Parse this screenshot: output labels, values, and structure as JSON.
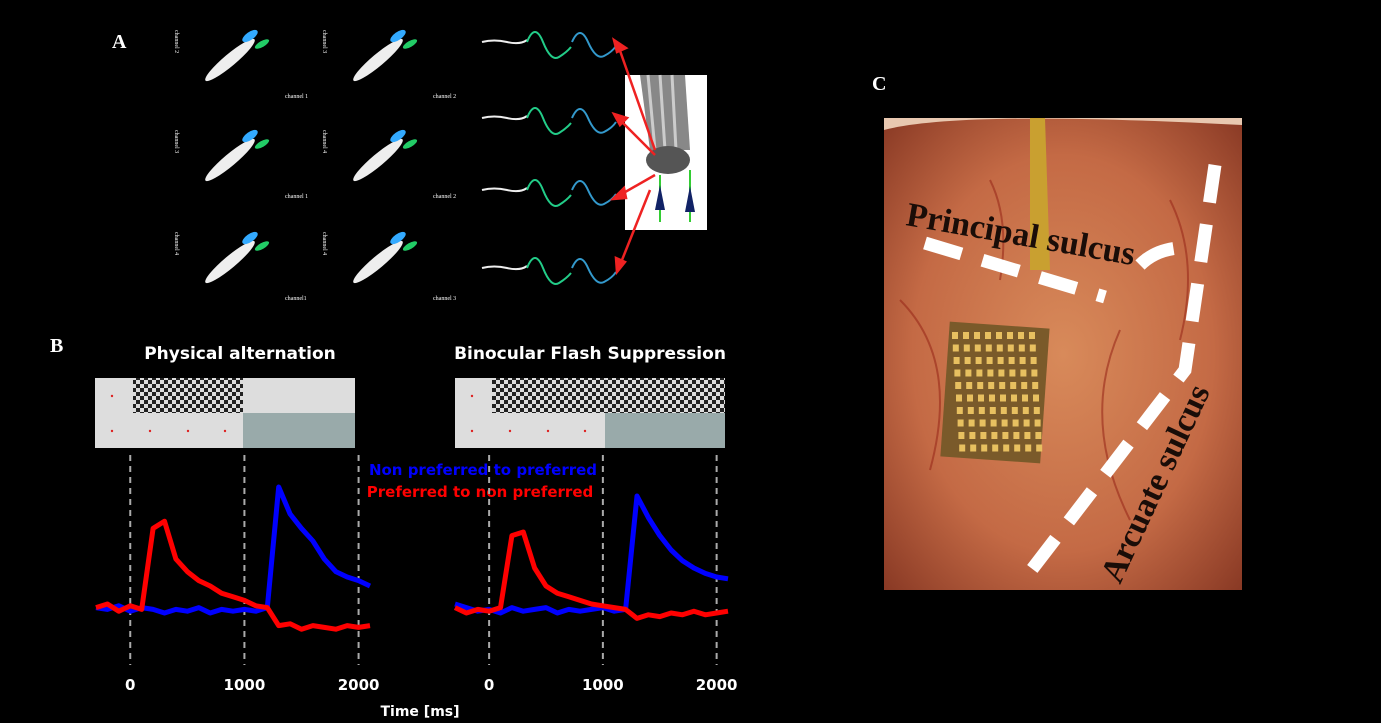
{
  "panels": {
    "a": {
      "label": "A",
      "scatter_axis_labels": [
        "channel 2",
        "channel 1",
        "channel 3",
        "channel 2",
        "channel 3",
        "channel 1",
        "channel 4",
        "channel 2",
        "channel 4",
        "channel1",
        "channel 4",
        "channel 3"
      ]
    },
    "b": {
      "label": "B",
      "x_label": "Time [ms]"
    },
    "c": {
      "label": "C",
      "annotations": [
        "Principal sulcus",
        "Arcuate sulcus"
      ]
    }
  },
  "chart_data": [
    {
      "type": "line",
      "title": "Physical alternation",
      "x": [
        -300,
        -200,
        -100,
        0,
        100,
        200,
        300,
        400,
        500,
        600,
        700,
        800,
        900,
        1000,
        1100,
        1200,
        1300,
        1400,
        1500,
        1600,
        1700,
        1800,
        1900,
        2000,
        2100
      ],
      "series": [
        {
          "name": "Non preferred to preferred",
          "color": "#0000ff",
          "values": [
            18,
            17,
            19,
            16,
            18,
            17,
            15,
            17,
            16,
            18,
            15,
            17,
            16,
            17,
            16,
            18,
            85,
            70,
            62,
            55,
            45,
            38,
            35,
            33,
            30
          ]
        },
        {
          "name": "Preferred to non preferred",
          "color": "#ff0000",
          "values": [
            18,
            20,
            16,
            19,
            17,
            62,
            66,
            45,
            38,
            33,
            30,
            26,
            24,
            22,
            19,
            18,
            8,
            9,
            6,
            8,
            7,
            6,
            8,
            7,
            8
          ]
        }
      ],
      "xlim": [
        -300,
        2100
      ],
      "ylim": [
        0,
        100
      ],
      "xticks": [
        0,
        1000,
        2000
      ],
      "grid": true
    },
    {
      "type": "line",
      "title": "Binocular Flash Suppression",
      "x": [
        -300,
        -200,
        -100,
        0,
        100,
        200,
        300,
        400,
        500,
        600,
        700,
        800,
        900,
        1000,
        1100,
        1200,
        1300,
        1400,
        1500,
        1600,
        1700,
        1800,
        1900,
        2000,
        2100
      ],
      "series": [
        {
          "color": "#0000ff",
          "values": [
            20,
            18,
            16,
            17,
            15,
            18,
            16,
            17,
            18,
            15,
            17,
            16,
            17,
            18,
            16,
            17,
            80,
            68,
            58,
            50,
            44,
            40,
            37,
            35,
            34
          ]
        },
        {
          "color": "#ff0000",
          "values": [
            18,
            15,
            17,
            16,
            18,
            58,
            60,
            40,
            30,
            26,
            24,
            22,
            20,
            19,
            18,
            17,
            12,
            14,
            13,
            15,
            14,
            16,
            14,
            15,
            16
          ]
        }
      ],
      "xlim": [
        -300,
        2100
      ],
      "ylim": [
        0,
        100
      ],
      "xticks": [
        0,
        1000,
        2000
      ],
      "grid": true
    }
  ]
}
